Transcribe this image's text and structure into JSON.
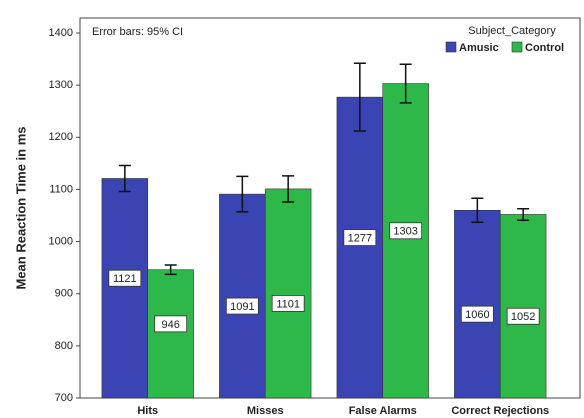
{
  "chart_data": {
    "type": "bar",
    "y_label": "Mean Reaction Time in ms",
    "annotation": "Error bars: 95% CI",
    "legend_title": "Subject_Category",
    "legend_position": "top-right",
    "categories": [
      "Hits",
      "Misses",
      "False Alarms",
      "Correct Rejections"
    ],
    "series": [
      {
        "name": "Amusic",
        "color": "#3a45b3",
        "values": [
          1121,
          1091,
          1277,
          1060
        ],
        "errors": [
          25,
          34,
          65,
          23
        ]
      },
      {
        "name": "Control",
        "color": "#2fb84a",
        "values": [
          946,
          1101,
          1303,
          1052
        ],
        "errors": [
          9,
          25,
          37,
          11
        ]
      }
    ],
    "ylim": [
      700,
      1400
    ],
    "yticks": [
      700,
      800,
      900,
      1000,
      1100,
      1200,
      1300,
      1400
    ]
  }
}
